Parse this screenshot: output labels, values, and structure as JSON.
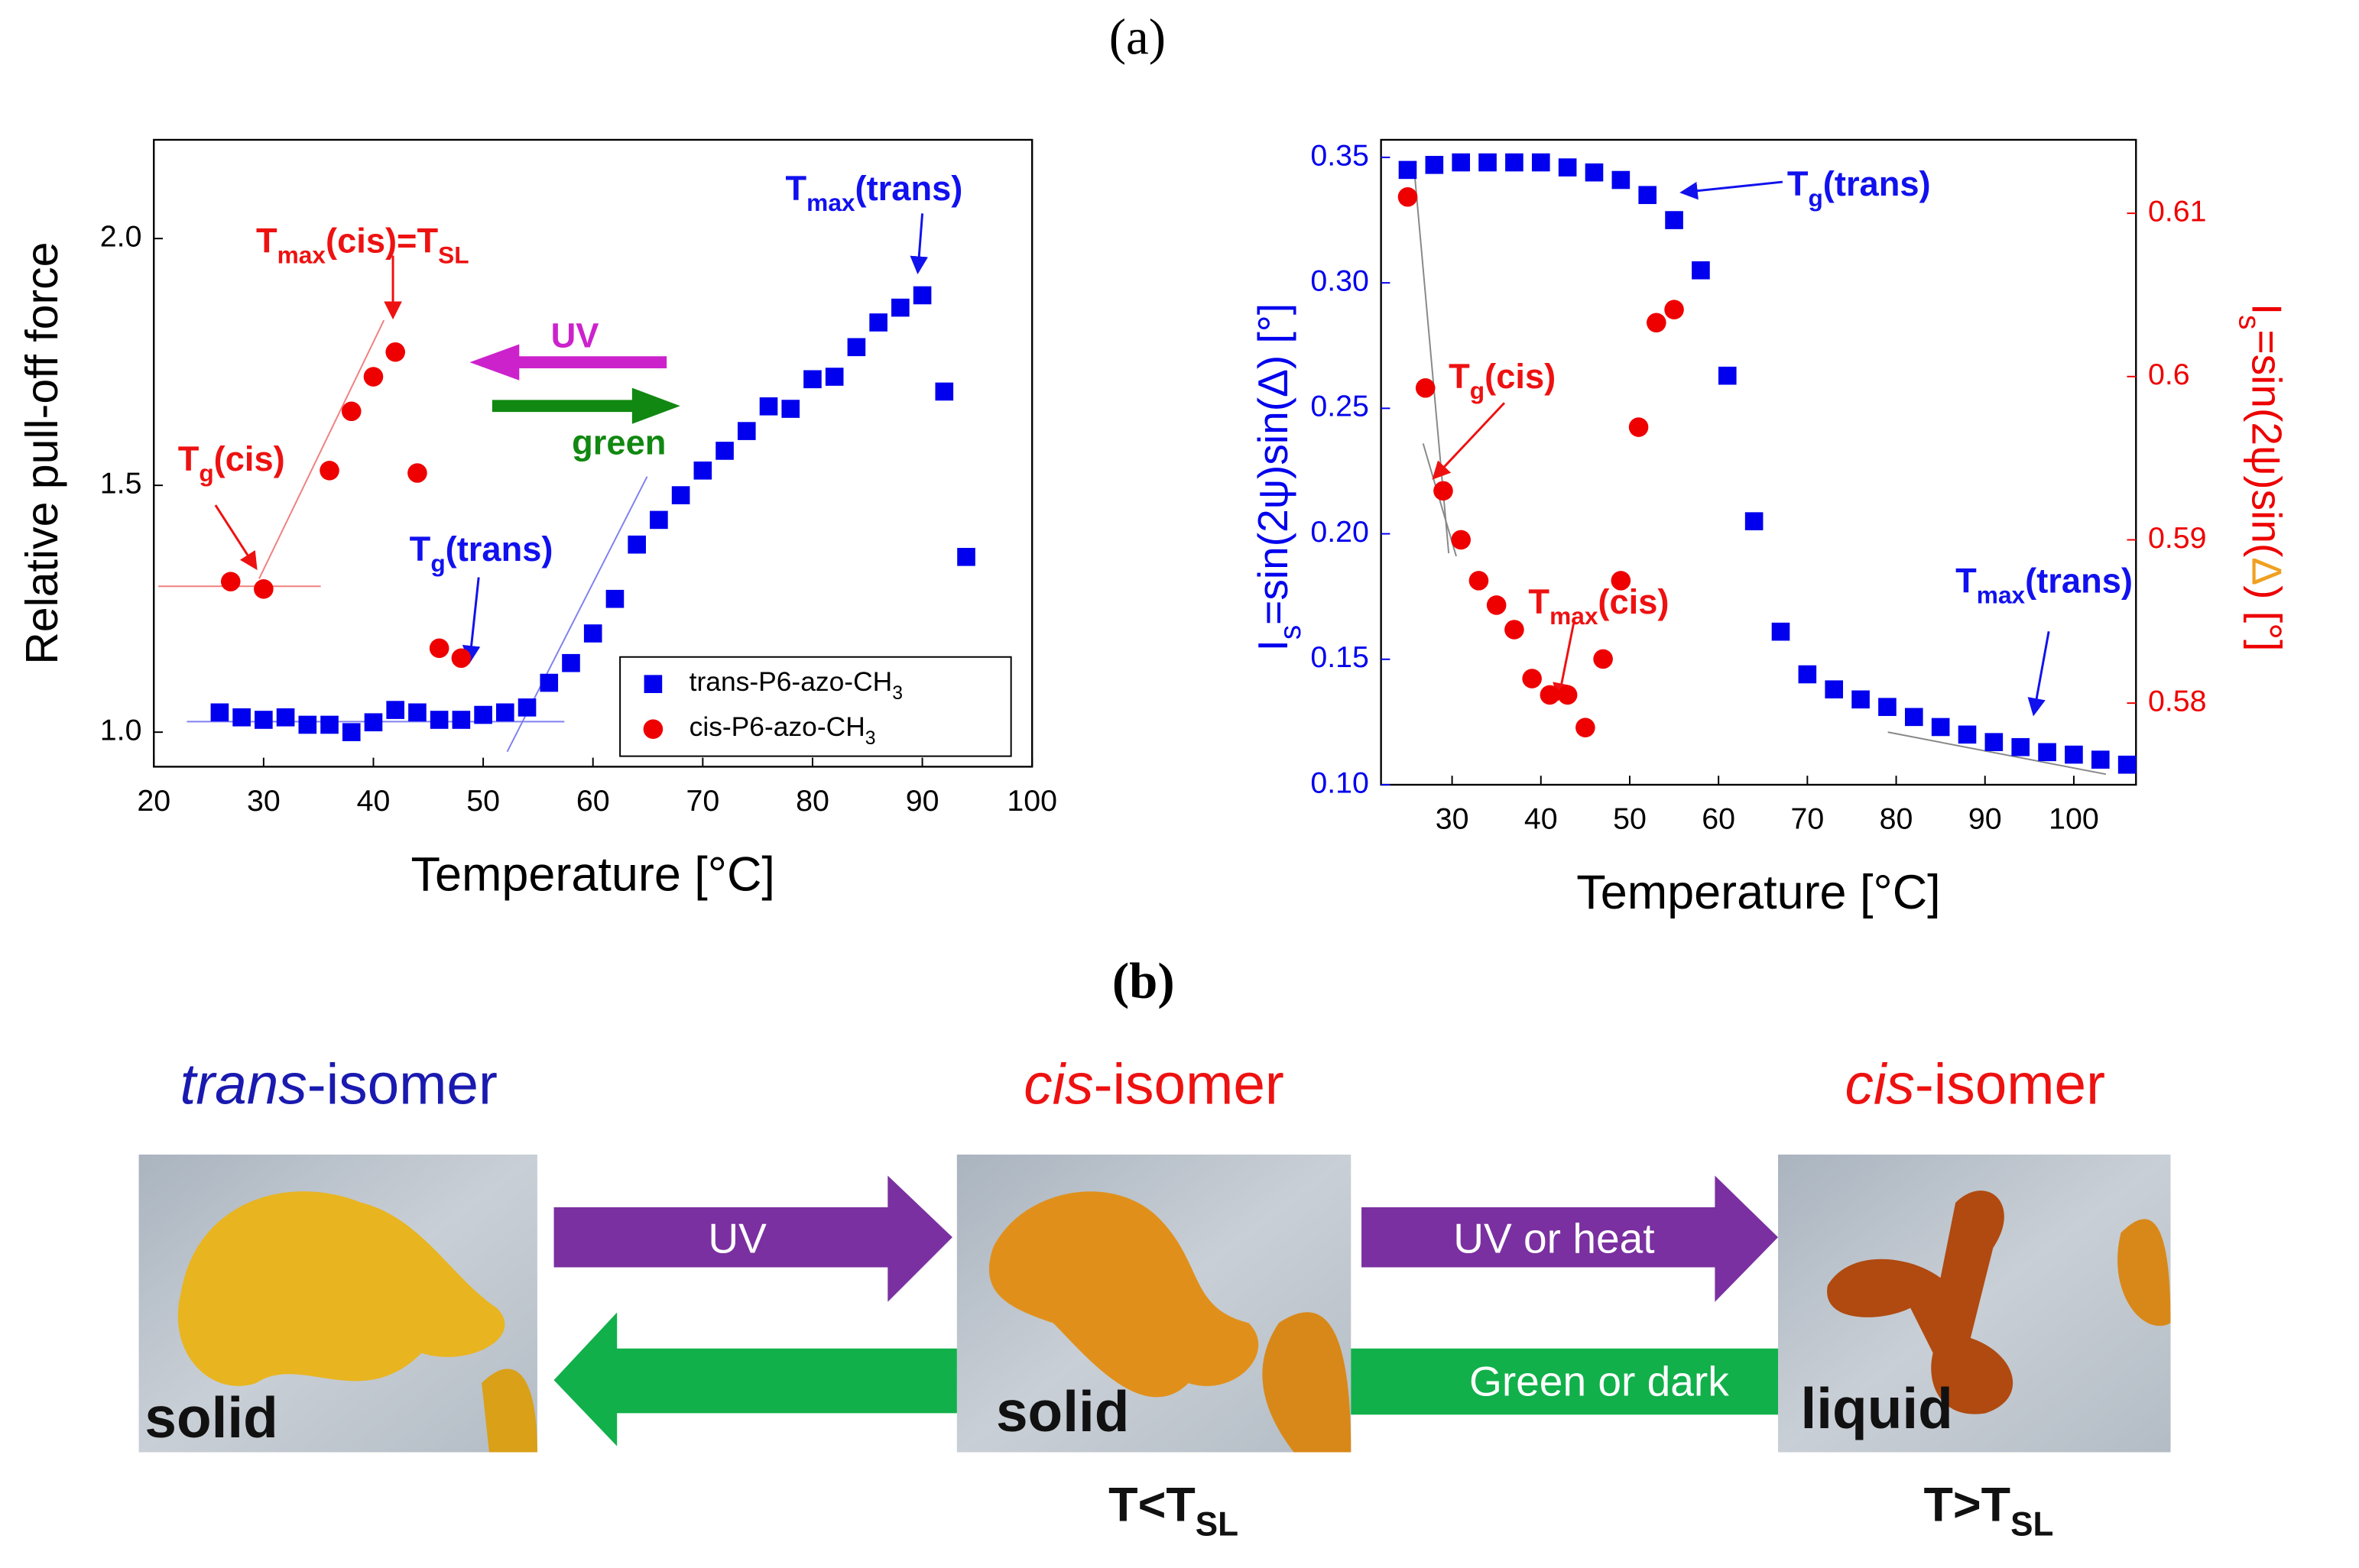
{
  "panel_labels": [
    "(a)",
    "(b)"
  ],
  "chart_data": [
    {
      "type": "scatter",
      "xlabel": "Temperature [°C]",
      "ylabel": "Relative pull-off force",
      "xlim": [
        20,
        100
      ],
      "xticks": [
        20,
        30,
        40,
        50,
        60,
        70,
        80,
        90,
        100
      ],
      "ylim": [
        0.93,
        2.2
      ],
      "yticks": [
        {
          "value": 1,
          "label": "1.0"
        },
        1.5,
        {
          "value": 2,
          "label": "2.0"
        }
      ],
      "legend": "lower right",
      "series": [
        {
          "name": [
            {
              "text": "trans-P6-azo-CH"
            },
            {
              "text": "3",
              "sub": true
            }
          ],
          "color": "#0000ee",
          "marker": "square",
          "x": [
            26,
            28,
            30,
            32,
            34,
            36,
            38,
            40,
            42,
            44,
            46,
            48,
            50,
            52,
            54,
            56,
            58,
            60,
            62,
            64,
            66,
            68,
            70,
            72,
            74,
            76,
            78,
            80,
            82,
            84,
            86,
            88,
            90,
            92,
            94
          ],
          "values": [
            1.04,
            1.03,
            1.025,
            1.03,
            1.015,
            1.015,
            1.0,
            1.02,
            1.045,
            1.04,
            1.025,
            1.025,
            1.035,
            1.04,
            1.05,
            1.1,
            1.14,
            1.2,
            1.27,
            1.38,
            1.43,
            1.48,
            1.53,
            1.57,
            1.61,
            1.66,
            1.655,
            1.715,
            1.72,
            1.78,
            1.83,
            1.86,
            1.885,
            1.69,
            1.355
          ]
        },
        {
          "name": [
            {
              "text": "cis-P6-azo-CH"
            },
            {
              "text": "3",
              "sub": true
            }
          ],
          "color": "#ee0000",
          "marker": "circle",
          "x": [
            27,
            30,
            36,
            38,
            40,
            42,
            44,
            46,
            48
          ],
          "values": [
            1.305,
            1.29,
            1.53,
            1.65,
            1.72,
            1.77,
            1.525,
            1.17,
            1.15
          ]
        }
      ],
      "annotations": [
        {
          "color": "#ee1111",
          "segments": [
            {
              "text": "T"
            },
            {
              "text": "max",
              "sub": true
            },
            {
              "text": "(cis)=T"
            },
            {
              "text": "SL",
              "sub": true
            }
          ]
        },
        {
          "color": "#ee1111",
          "segments": [
            {
              "text": "T"
            },
            {
              "text": "g",
              "sub": true
            },
            {
              "text": "(cis)"
            }
          ]
        },
        {
          "color": "#1111ee",
          "segments": [
            {
              "text": "T"
            },
            {
              "text": "max",
              "sub": true
            },
            {
              "text": "(trans)"
            }
          ]
        },
        {
          "color": "#1111ee",
          "segments": [
            {
              "text": "T"
            },
            {
              "text": "g",
              "sub": true
            },
            {
              "text": "(trans)"
            }
          ]
        },
        {
          "color": "#cc22cc",
          "segments": [
            {
              "text": "UV"
            }
          ]
        },
        {
          "color": "#118811",
          "segments": [
            {
              "text": "green"
            }
          ]
        }
      ]
    },
    {
      "type": "scatter",
      "xlabel": "Temperature [°C]",
      "ylabel": [
        {
          "text": "I"
        },
        {
          "text": "s",
          "sub": true
        },
        {
          "text": "=sin(2ψ)sin(Δ)  [°]"
        }
      ],
      "y2label": [
        {
          "text": "I"
        },
        {
          "text": "s",
          "sub": true
        },
        {
          "text": "=sin(2ψ)sin("
        },
        {
          "text": "Δ",
          "color": "#f0a020"
        },
        {
          "text": ") [°]"
        }
      ],
      "xlim": [
        22,
        107
      ],
      "xticks": [
        30,
        40,
        50,
        60,
        70,
        80,
        90,
        100
      ],
      "ylim": [
        0.1,
        0.357
      ],
      "yticks": [
        {
          "value": 0.1,
          "label": "0.10"
        },
        0.15,
        {
          "value": 0.2,
          "label": "0.20"
        },
        0.25,
        {
          "value": 0.3,
          "label": "0.30"
        },
        0.35
      ],
      "y2lim": [
        0.575,
        0.6145
      ],
      "y2ticks": [
        0.58,
        0.59,
        0.6,
        0.61
      ],
      "series": [
        {
          "color": "#0000ee",
          "marker": "square",
          "x": [
            25,
            28,
            31,
            34,
            37,
            40,
            43,
            46,
            49,
            52,
            55,
            58,
            61,
            64,
            67,
            70,
            73,
            76,
            79,
            82,
            85,
            88,
            91,
            94,
            97,
            100,
            103,
            106
          ],
          "values": [
            0.345,
            0.347,
            0.348,
            0.348,
            0.348,
            0.348,
            0.346,
            0.344,
            0.341,
            0.335,
            0.325,
            0.305,
            0.263,
            0.205,
            0.161,
            0.144,
            0.138,
            0.134,
            0.131,
            0.127,
            0.123,
            0.12,
            0.117,
            0.115,
            0.113,
            0.112,
            0.11,
            0.108
          ]
        },
        {
          "color": "#ee0000",
          "marker": "circle",
          "axis": "y2",
          "x": [
            25,
            27,
            29,
            31,
            33,
            35,
            37,
            39,
            41,
            43,
            45,
            47,
            49,
            51,
            53,
            55
          ],
          "values": [
            0.611,
            0.5993,
            0.593,
            0.59,
            0.5875,
            0.586,
            0.5845,
            0.5815,
            0.5805,
            0.5805,
            0.5785,
            0.5827,
            0.5875,
            0.5969,
            0.6033,
            0.6041
          ]
        }
      ],
      "annotations": [
        {
          "color": "#1111ee",
          "segments": [
            {
              "text": "T"
            },
            {
              "text": "g",
              "sub": true
            },
            {
              "text": "(trans)"
            }
          ]
        },
        {
          "color": "#ee1111",
          "segments": [
            {
              "text": "T"
            },
            {
              "text": "g",
              "sub": true
            },
            {
              "text": "(cis)"
            }
          ]
        },
        {
          "color": "#ee1111",
          "segments": [
            {
              "text": "T"
            },
            {
              "text": "max",
              "sub": true
            },
            {
              "text": "(cis)"
            }
          ]
        },
        {
          "color": "#1111ee",
          "segments": [
            {
              "text": "T"
            },
            {
              "text": "max",
              "sub": true
            },
            {
              "text": "(trans)"
            }
          ]
        }
      ]
    }
  ],
  "diagram": {
    "isomers": [
      [
        {
          "text": "trans",
          "italic": true
        },
        {
          "text": "-isomer"
        }
      ],
      [
        {
          "text": "cis",
          "italic": true
        },
        {
          "text": "-isomer"
        }
      ],
      [
        {
          "text": "cis",
          "italic": true
        },
        {
          "text": "-isomer"
        }
      ]
    ],
    "states": [
      "solid",
      "solid",
      "liquid"
    ],
    "arrows": [
      "UV",
      "UV or heat",
      "Green or dark"
    ],
    "conditions": [
      [
        {
          "text": "T<T"
        },
        {
          "text": "SL",
          "sub": true
        }
      ],
      [
        {
          "text": "T>T"
        },
        {
          "text": "SL",
          "sub": true
        }
      ]
    ]
  }
}
